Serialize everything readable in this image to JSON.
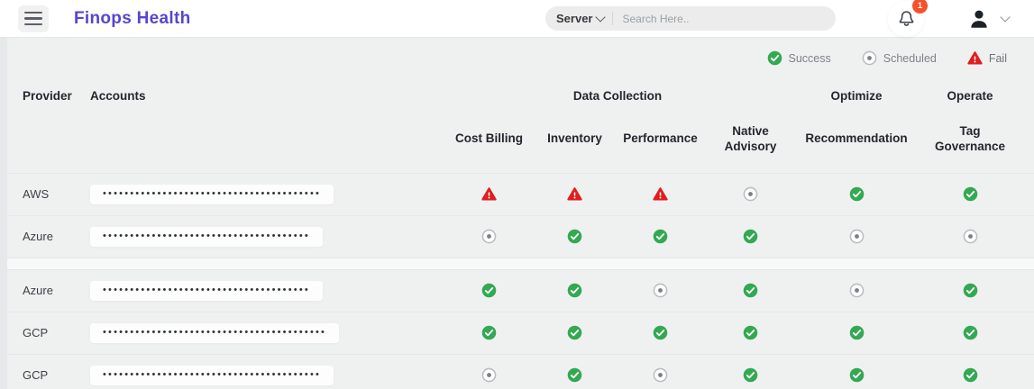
{
  "header": {
    "title": "Finops Health",
    "search": {
      "dropdown_label": "Server",
      "placeholder": "Search Here.."
    },
    "notifications": {
      "count": "1"
    }
  },
  "legend": [
    {
      "type": "success",
      "label": "Success"
    },
    {
      "type": "scheduled",
      "label": "Scheduled"
    },
    {
      "type": "fail",
      "label": "Fail"
    }
  ],
  "table": {
    "provider_header": "Provider",
    "accounts_header": "Accounts",
    "groups": [
      {
        "label": "Data Collection"
      },
      {
        "label": "Optimize"
      },
      {
        "label": "Operate"
      }
    ],
    "columns": [
      "Cost Billing",
      "Inventory",
      "Performance",
      "Native Advisory",
      "Recommendation",
      "Tag Governance"
    ],
    "group_separator_after_row": 2,
    "rows": [
      {
        "provider": "AWS",
        "account_mask": "••••••••••••••••••••••••••••••••••••••••",
        "statuses": [
          "fail",
          "fail",
          "fail",
          "scheduled",
          "success",
          "success"
        ]
      },
      {
        "provider": "Azure",
        "account_mask": "••••••••••••••••••••••••••••••••••••••",
        "statuses": [
          "scheduled",
          "success",
          "success",
          "success",
          "scheduled",
          "scheduled"
        ]
      },
      {
        "provider": "Azure",
        "account_mask": "••••••••••••••••••••••••••••••••••••••",
        "statuses": [
          "success",
          "success",
          "scheduled",
          "success",
          "scheduled",
          "success"
        ]
      },
      {
        "provider": "GCP",
        "account_mask": "•••••••••••••••••••••••••••••••••••••••••",
        "statuses": [
          "success",
          "success",
          "success",
          "success",
          "success",
          "success"
        ]
      },
      {
        "provider": "GCP",
        "account_mask": "••••••••••••••••••••••••••••••••••••••••",
        "statuses": [
          "scheduled",
          "success",
          "scheduled",
          "success",
          "success",
          "success"
        ]
      }
    ]
  },
  "colors": {
    "accent": "#5546d0",
    "success": "#34a853",
    "fail": "#e01e1e",
    "scheduled_ring": "#b9bdc1",
    "scheduled_dot": "#7a7f85",
    "badge": "#f4512c"
  }
}
